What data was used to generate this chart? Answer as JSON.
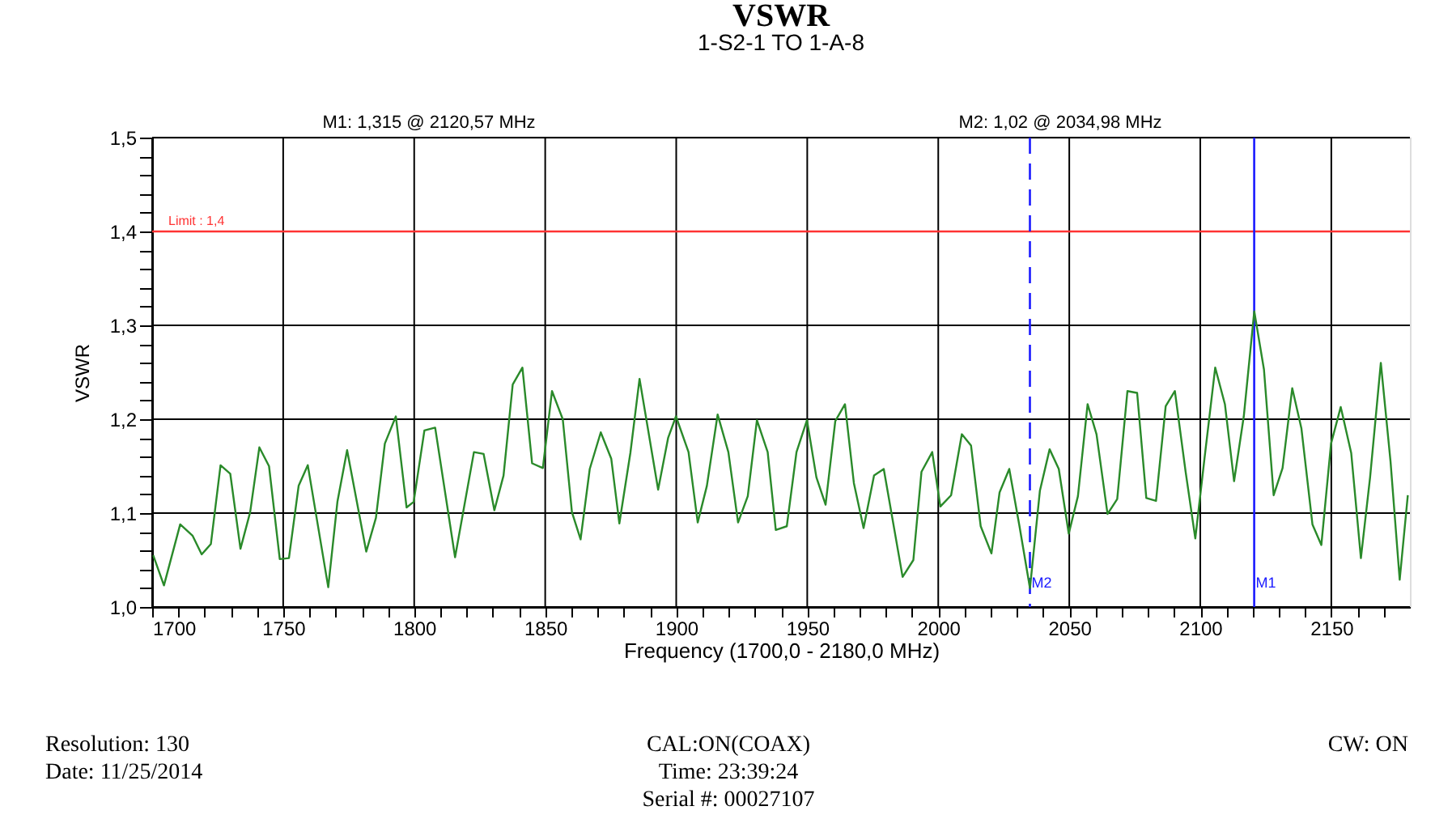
{
  "chart_data": {
    "type": "line",
    "title": "VSWR",
    "subtitle": "1-S2-1 TO 1-A-8",
    "xlabel": "Frequency (1700,0 - 2180,0 MHz)",
    "ylabel": "VSWR",
    "xlim": [
      1700,
      2180
    ],
    "ylim": [
      1.0,
      1.5
    ],
    "grid": true,
    "xticks": [
      1700,
      {
        "value": 1710,
        "label": null
      },
      {
        "value": 1720,
        "label": null
      },
      {
        "value": 1730,
        "label": null
      },
      {
        "value": 1740,
        "label": null
      },
      1750,
      {
        "value": 1760,
        "label": null
      },
      {
        "value": 1770,
        "label": null
      },
      {
        "value": 1780,
        "label": null
      },
      {
        "value": 1790,
        "label": null
      },
      1800,
      {
        "value": 1810,
        "label": null
      },
      {
        "value": 1820,
        "label": null
      },
      {
        "value": 1830,
        "label": null
      },
      {
        "value": 1840,
        "label": null
      },
      1850,
      {
        "value": 1860,
        "label": null
      },
      {
        "value": 1870,
        "label": null
      },
      {
        "value": 1880,
        "label": null
      },
      {
        "value": 1890,
        "label": null
      },
      1900,
      {
        "value": 1910,
        "label": null
      },
      {
        "value": 1920,
        "label": null
      },
      {
        "value": 1930,
        "label": null
      },
      {
        "value": 1940,
        "label": null
      },
      1950,
      {
        "value": 1960,
        "label": null
      },
      {
        "value": 1970,
        "label": null
      },
      {
        "value": 1980,
        "label": null
      },
      {
        "value": 1990,
        "label": null
      },
      2000,
      {
        "value": 2010,
        "label": null
      },
      {
        "value": 2020,
        "label": null
      },
      {
        "value": 2030,
        "label": null
      },
      {
        "value": 2040,
        "label": null
      },
      2050,
      {
        "value": 2060,
        "label": null
      },
      {
        "value": 2070,
        "label": null
      },
      {
        "value": 2080,
        "label": null
      },
      {
        "value": 2090,
        "label": null
      },
      2100,
      {
        "value": 2110,
        "label": null
      },
      {
        "value": 2120,
        "label": null
      },
      {
        "value": 2130,
        "label": null
      },
      {
        "value": 2140,
        "label": null
      },
      2150,
      {
        "value": 2160,
        "label": null
      },
      {
        "value": 2170,
        "label": null
      }
    ],
    "yticks": [
      {
        "value": 1.0,
        "label": "1,0"
      },
      {
        "value": 1.02,
        "label": null
      },
      {
        "value": 1.04,
        "label": null
      },
      {
        "value": 1.06,
        "label": null
      },
      {
        "value": 1.08,
        "label": null
      },
      {
        "value": 1.1,
        "label": "1,1"
      },
      {
        "value": 1.12,
        "label": null
      },
      {
        "value": 1.14,
        "label": null
      },
      {
        "value": 1.16,
        "label": null
      },
      {
        "value": 1.18,
        "label": null
      },
      {
        "value": 1.2,
        "label": "1,2"
      },
      {
        "value": 1.22,
        "label": null
      },
      {
        "value": 1.24,
        "label": null
      },
      {
        "value": 1.26,
        "label": null
      },
      {
        "value": 1.28,
        "label": null
      },
      {
        "value": 1.3,
        "label": "1,3"
      },
      {
        "value": 1.32,
        "label": null
      },
      {
        "value": 1.34,
        "label": null
      },
      {
        "value": 1.36,
        "label": null
      },
      {
        "value": 1.38,
        "label": null
      },
      {
        "value": 1.4,
        "label": "1,4"
      },
      {
        "value": 1.42,
        "label": null
      },
      {
        "value": 1.44,
        "label": null
      },
      {
        "value": 1.46,
        "label": null
      },
      {
        "value": 1.48,
        "label": null
      },
      {
        "value": 1.5,
        "label": "1,5"
      }
    ],
    "series": [
      {
        "color": "#2a8a2a",
        "x": [
          1700.4,
          1704.5,
          1710.7,
          1715.4,
          1718.9,
          1722.4,
          1726.1,
          1729.8,
          1733.7,
          1737.4,
          1740.9,
          1744.6,
          1748.7,
          1752.2,
          1755.9,
          1759.4,
          1767.2,
          1770.7,
          1774.4,
          1781.7,
          1785.4,
          1788.8,
          1793.0,
          1797.1,
          1799.8,
          1803.9,
          1808.0,
          1815.6,
          1822.8,
          1826.5,
          1830.6,
          1834.1,
          1837.6,
          1841.3,
          1845.0,
          1849.1,
          1852.6,
          1856.7,
          1860.2,
          1863.5,
          1867.0,
          1871.2,
          1875.2,
          1878.3,
          1882.5,
          1886.0,
          1893.1,
          1896.9,
          1899.9,
          1904.7,
          1908.2,
          1911.7,
          1915.8,
          1919.9,
          1923.6,
          1927.3,
          1930.8,
          1934.9,
          1938.0,
          1942.2,
          1945.9,
          1949.9,
          1953.5,
          1957.0,
          1960.7,
          1964.4,
          1967.8,
          1971.5,
          1975.5,
          1979.2,
          1986.4,
          1990.5,
          1993.6,
          1997.7,
          2000.8,
          2004.9,
          2009.0,
          2012.5,
          2016.2,
          2020.3,
          2023.4,
          2027.1,
          2031.0,
          2035.0,
          2038.8,
          2042.5,
          2046.0,
          2049.8,
          2053.3,
          2057.0,
          2060.4,
          2064.6,
          2068.3,
          2072.2,
          2075.9,
          2079.4,
          2083.1,
          2086.8,
          2090.3,
          2094.4,
          2098.1,
          2101.6,
          2105.7,
          2109.4,
          2112.9,
          2116.6,
          2120.6,
          2124.3,
          2128.0,
          2131.4,
          2135.1,
          2138.6,
          2142.8,
          2146.2,
          2149.9,
          2153.6,
          2157.6,
          2161.3,
          2164.8,
          2168.9,
          2172.6,
          2176.1,
          2179.2
        ],
        "values": [
          1.055,
          1.023,
          1.088,
          1.076,
          1.056,
          1.067,
          1.151,
          1.142,
          1.062,
          1.101,
          1.17,
          1.15,
          1.051,
          1.052,
          1.129,
          1.151,
          1.021,
          1.112,
          1.167,
          1.059,
          1.095,
          1.174,
          1.203,
          1.106,
          1.112,
          1.188,
          1.191,
          1.053,
          1.165,
          1.163,
          1.103,
          1.14,
          1.237,
          1.255,
          1.153,
          1.148,
          1.23,
          1.2,
          1.101,
          1.072,
          1.147,
          1.186,
          1.158,
          1.089,
          1.164,
          1.243,
          1.125,
          1.18,
          1.203,
          1.165,
          1.09,
          1.129,
          1.205,
          1.165,
          1.09,
          1.118,
          1.199,
          1.165,
          1.082,
          1.086,
          1.165,
          1.199,
          1.138,
          1.109,
          1.198,
          1.216,
          1.132,
          1.084,
          1.14,
          1.147,
          1.032,
          1.05,
          1.144,
          1.165,
          1.107,
          1.119,
          1.184,
          1.172,
          1.086,
          1.057,
          1.122,
          1.147,
          1.086,
          1.02,
          1.124,
          1.168,
          1.147,
          1.078,
          1.118,
          1.216,
          1.184,
          1.099,
          1.115,
          1.23,
          1.228,
          1.116,
          1.113,
          1.214,
          1.23,
          1.144,
          1.073,
          1.158,
          1.255,
          1.216,
          1.134,
          1.203,
          1.315,
          1.253,
          1.119,
          1.148,
          1.233,
          1.19,
          1.088,
          1.066,
          1.174,
          1.213,
          1.164,
          1.052,
          1.138,
          1.26,
          1.155,
          1.029,
          1.119
        ]
      }
    ],
    "ref_lines": [
      {
        "axis": "y",
        "value": 1.4,
        "label": "Limit : 1,4",
        "color": "#ff3333",
        "line_style": "solid"
      },
      {
        "axis": "x",
        "value": 2034.98,
        "label": "M2",
        "color": "#1a1aff",
        "line_style": "dashed"
      },
      {
        "axis": "x",
        "value": 2120.57,
        "label": "M1",
        "color": "#1a1aff",
        "line_style": "solid"
      }
    ],
    "annotations": [
      "M1: 1,315  @ 2120,57 MHz",
      "M2: 1,02  @ 2034,98 MHz",
      "Resolution:  130",
      "Date: 11/25/2014",
      "CAL:ON(COAX)",
      "Time: 23:39:24",
      "Serial #: 00027107",
      "CW: ON"
    ]
  }
}
